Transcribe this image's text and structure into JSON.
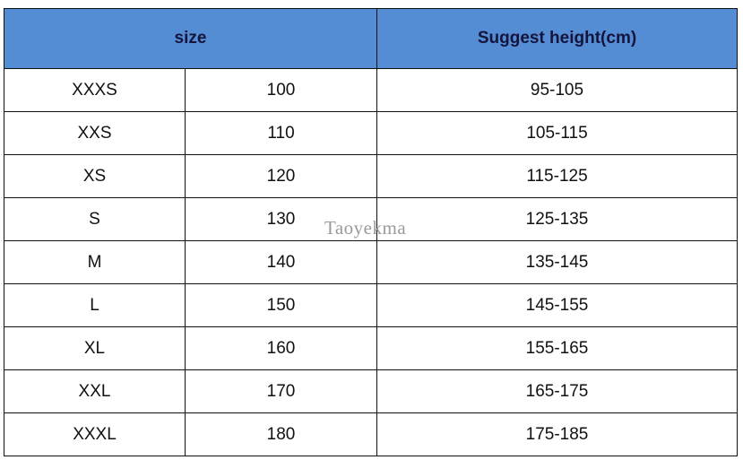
{
  "header": {
    "size": "size",
    "height": "Suggest height(cm)"
  },
  "rows": [
    {
      "size": "XXXS",
      "num": "100",
      "height": "95-105"
    },
    {
      "size": "XXS",
      "num": "110",
      "height": "105-115"
    },
    {
      "size": "XS",
      "num": "120",
      "height": "115-125"
    },
    {
      "size": "S",
      "num": "130",
      "height": "125-135"
    },
    {
      "size": "M",
      "num": "140",
      "height": "135-145"
    },
    {
      "size": "L",
      "num": "150",
      "height": "145-155"
    },
    {
      "size": "XL",
      "num": "160",
      "height": "155-165"
    },
    {
      "size": "XXL",
      "num": "170",
      "height": "165-175"
    },
    {
      "size": "XXXL",
      "num": "180",
      "height": "175-185"
    }
  ],
  "watermark": "Taoyekma",
  "colors": {
    "header_bg": "#548dd4",
    "header_text": "#14143c"
  }
}
